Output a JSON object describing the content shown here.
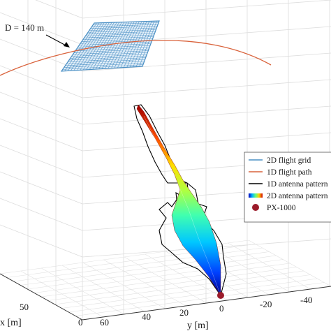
{
  "annotation": {
    "label": "D = 140 m"
  },
  "legend": {
    "placement": "right",
    "items": [
      {
        "label": "2D flight grid",
        "swatch": "line",
        "color": "#4a8fc4"
      },
      {
        "label": "1D flight path",
        "swatch": "line",
        "color": "#d9623b"
      },
      {
        "label": "1D antenna pattern",
        "swatch": "line",
        "color": "#000000"
      },
      {
        "label": "2D antenna pattern",
        "swatch": "jet-gradient",
        "color": "jet"
      },
      {
        "label": "PX-1000",
        "swatch": "marker",
        "color": "#9b1b2a"
      }
    ]
  },
  "axes": {
    "x": {
      "label": "x [m]",
      "ticks": [
        "50",
        "0"
      ]
    },
    "y": {
      "label": "y [m]",
      "ticks": [
        "60",
        "40",
        "20",
        "0",
        "-20",
        "-40"
      ]
    }
  },
  "colors": {
    "grid_mesh": "#4a8fc4",
    "flight_path": "#d9623b",
    "pattern_1d": "#000000",
    "radar_marker": "#9b1b2a",
    "gridlines": "#dcdcdc"
  }
}
